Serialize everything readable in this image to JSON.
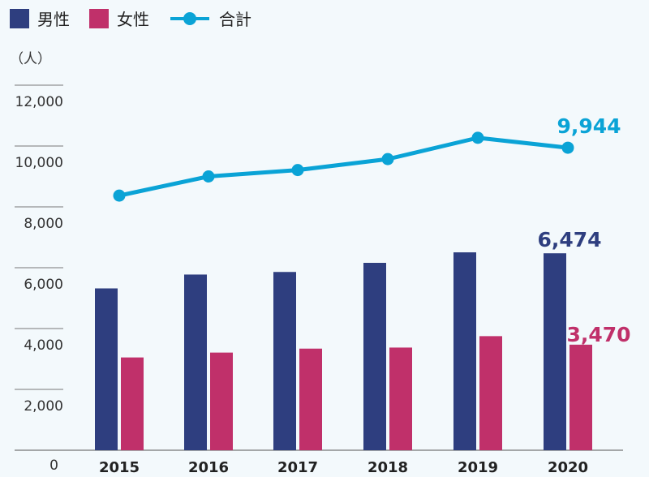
{
  "chart_data": {
    "type": "bar",
    "unit": "（人）",
    "categories": [
      "2015",
      "2016",
      "2017",
      "2018",
      "2019",
      "2020"
    ],
    "series": [
      {
        "name": "男性",
        "type": "bar",
        "color": "#2e3e7f",
        "values": [
          5320,
          5775,
          5860,
          6160,
          6505,
          6474
        ]
      },
      {
        "name": "女性",
        "type": "bar",
        "color": "#c0306a",
        "values": [
          3050,
          3210,
          3340,
          3375,
          3750,
          3470
        ]
      },
      {
        "name": "合計",
        "type": "line",
        "color": "#0aa3d6",
        "values": [
          8370,
          9000,
          9210,
          9570,
          10270,
          9944
        ]
      }
    ],
    "ylim": [
      0,
      12000
    ],
    "yticks": [
      0,
      2000,
      4000,
      6000,
      8000,
      10000,
      12000
    ],
    "ytick_labels": [
      "0",
      "2,000",
      "4,000",
      "6,000",
      "8,000",
      "10,000",
      "12,000"
    ],
    "annotations": [
      {
        "series": "合計",
        "category": "2020",
        "text": "9,944"
      },
      {
        "series": "男性",
        "category": "2020",
        "text": "6,474"
      },
      {
        "series": "女性",
        "category": "2020",
        "text": "3,470"
      }
    ]
  }
}
